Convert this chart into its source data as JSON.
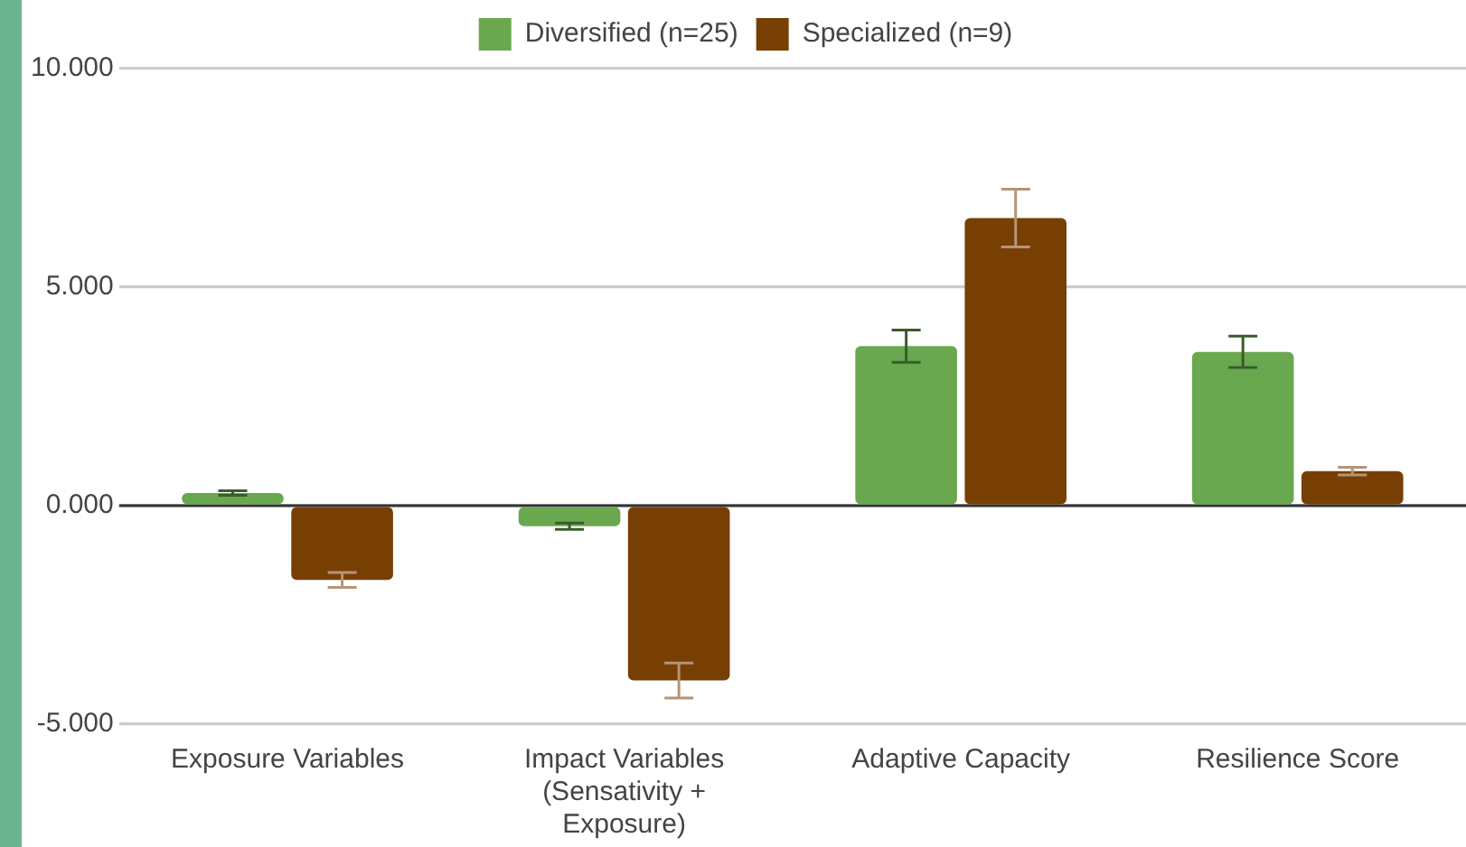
{
  "chart_data": {
    "type": "bar",
    "categories": [
      "Exposure Variables",
      "Impact Variables (Sensativity + Exposure)",
      "Adaptive Capacity",
      "Resilience Score"
    ],
    "series": [
      {
        "name": "Diversified (n=25)",
        "color": "#6aa84f",
        "values": [
          0.29,
          -0.47,
          3.65,
          3.52
        ],
        "errors": [
          0.05,
          0.07,
          0.37,
          0.36
        ]
      },
      {
        "name": "Specialized (n=9)",
        "color": "#783f04",
        "values": [
          -1.7,
          -4.0,
          6.58,
          0.79
        ],
        "errors": [
          0.17,
          0.4,
          0.66,
          0.09
        ]
      }
    ],
    "ylim": [
      -5,
      10
    ],
    "yticks": [
      {
        "value": -5,
        "label": "-5.000"
      },
      {
        "value": 0,
        "label": "0.000"
      },
      {
        "value": 5,
        "label": "5.000"
      },
      {
        "value": 10,
        "label": "10.000"
      }
    ],
    "ref_lines": [
      {
        "axis": "y",
        "value": 0,
        "color": "#333333"
      }
    ],
    "grid": "y",
    "legend": "top"
  }
}
